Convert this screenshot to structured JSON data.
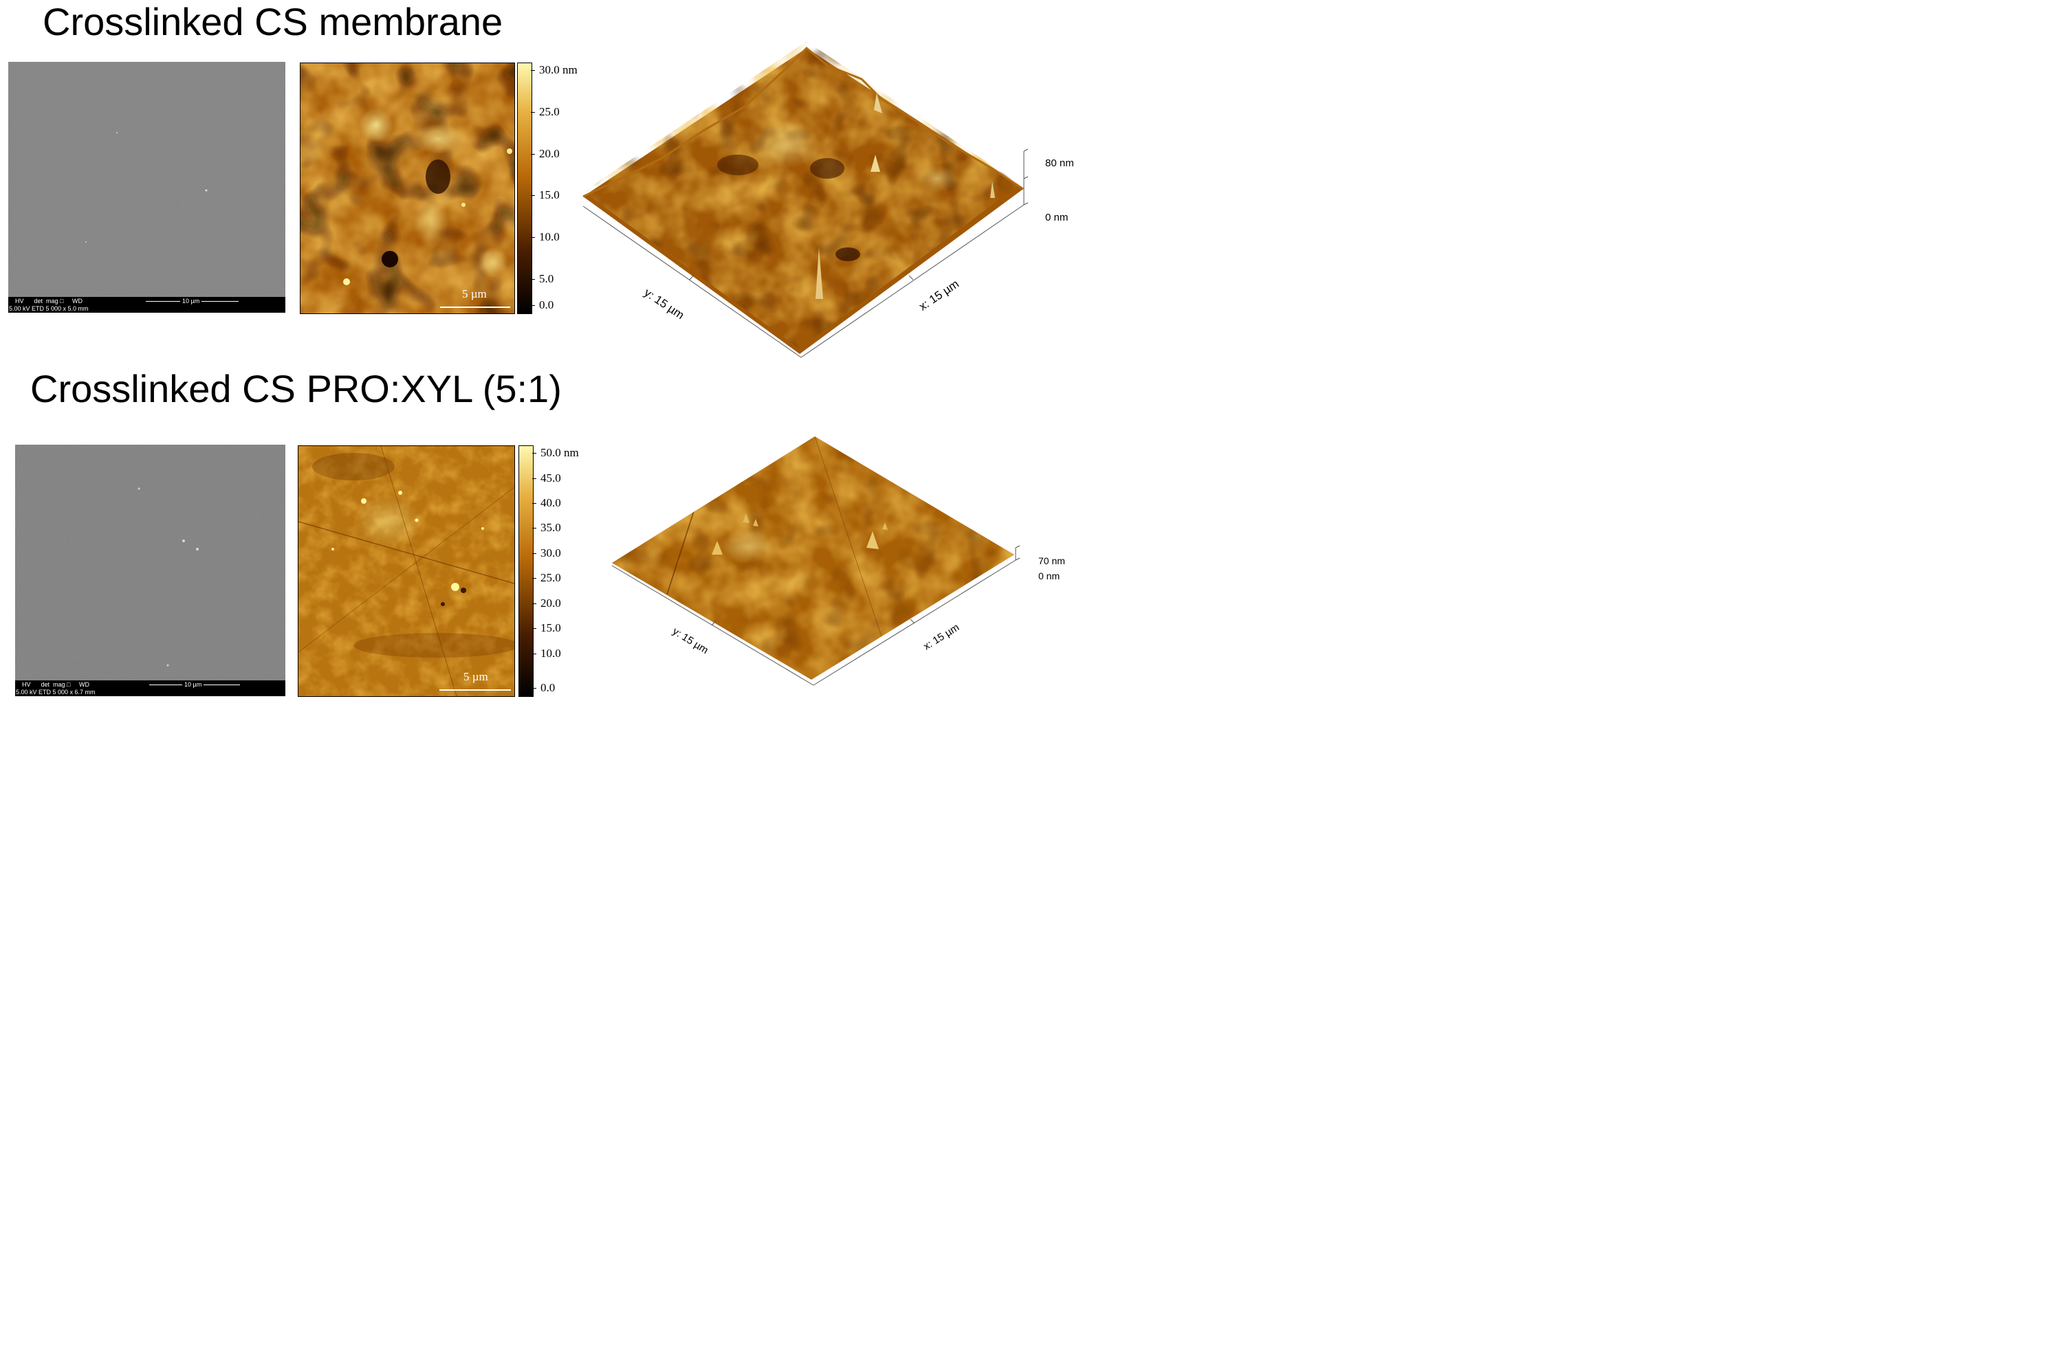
{
  "panels": [
    {
      "title": "Crosslinked CS membrane",
      "sem": {
        "header": "HV      det  mag □     WD",
        "values": "5.00 kV ETD 5 000 x 5.0 mm",
        "scale_label": "10 µm"
      },
      "afm": {
        "scale_label": "5 µm",
        "colorbar_ticks": [
          "30.0 nm",
          "25.0",
          "20.0",
          "15.0",
          "10.0",
          "5.0",
          "0.0"
        ]
      },
      "surface3d": {
        "y_label": "y: 15 µm",
        "x_label": "x: 15 µm",
        "z_top": "80 nm",
        "z_bottom": "0 nm"
      }
    },
    {
      "title": "Crosslinked CS PRO:XYL (5:1)",
      "sem": {
        "header": "HV      det  mag □     WD",
        "values": "5.00 kV ETD 5 000 x 6.7 mm",
        "scale_label": "10 µm"
      },
      "afm": {
        "scale_label": "5 µm",
        "colorbar_ticks": [
          "50.0 nm",
          "45.0",
          "40.0",
          "35.0",
          "30.0",
          "25.0",
          "20.0",
          "15.0",
          "10.0",
          "0.0"
        ]
      },
      "surface3d": {
        "y_label": "y: 15 µm",
        "x_label": "x: 15 µm",
        "z_top": "70 nm",
        "z_bottom": "0 nm"
      }
    }
  ],
  "colors": {
    "afm_dark": "#1a0a00",
    "afm_mid": "#b8680a",
    "afm_light": "#ffe880",
    "sem_gray": "#7d7d7d"
  }
}
